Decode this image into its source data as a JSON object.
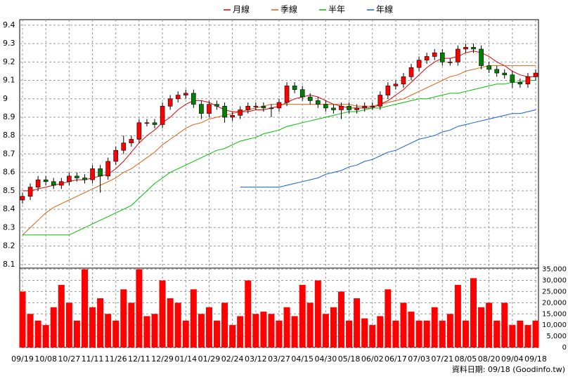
{
  "chart_data": {
    "type": "candlestick",
    "categories": [
      "09/19",
      null,
      null,
      "10/08",
      null,
      null,
      "10/27",
      null,
      null,
      "11/11",
      null,
      null,
      "11/26",
      null,
      null,
      "12/11",
      null,
      null,
      "12/29",
      null,
      null,
      "01/14",
      null,
      null,
      "01/29",
      null,
      null,
      "02/24",
      null,
      null,
      "03/12",
      null,
      null,
      "03/27",
      null,
      null,
      "04/15",
      null,
      null,
      "04/30",
      null,
      null,
      "05/18",
      null,
      null,
      "06/02",
      null,
      null,
      "06/17",
      null,
      null,
      "07/03",
      null,
      null,
      "07/21",
      null,
      null,
      "08/05",
      null,
      null,
      "08/20",
      null,
      null,
      "09/04",
      null,
      null,
      "09/18"
    ],
    "open": [
      8.45,
      8.47,
      8.52,
      8.56,
      8.55,
      8.53,
      8.55,
      8.58,
      8.57,
      8.56,
      8.62,
      8.58,
      8.66,
      8.72,
      8.76,
      8.78,
      8.87,
      8.87,
      8.86,
      8.96,
      9.0,
      9.02,
      9.03,
      8.97,
      8.92,
      8.97,
      8.96,
      8.9,
      8.91,
      8.94,
      8.96,
      8.96,
      8.95,
      8.95,
      8.98,
      9.07,
      9.05,
      9.01,
      8.99,
      8.97,
      8.95,
      8.94,
      8.96,
      8.94,
      8.95,
      8.96,
      8.96,
      9.02,
      9.07,
      9.08,
      9.12,
      9.17,
      9.21,
      9.23,
      9.25,
      9.2,
      9.2,
      9.27,
      9.28,
      9.27,
      9.18,
      9.16,
      9.14,
      9.13,
      9.09,
      9.08,
      9.12
    ],
    "high": [
      8.49,
      8.54,
      8.58,
      8.58,
      8.57,
      8.57,
      8.6,
      8.6,
      8.59,
      8.64,
      8.64,
      8.68,
      8.74,
      8.8,
      8.8,
      8.89,
      8.89,
      8.89,
      8.98,
      9.02,
      9.04,
      9.05,
      9.05,
      8.99,
      8.99,
      8.99,
      8.98,
      8.93,
      8.96,
      8.98,
      8.98,
      8.98,
      8.97,
      9.0,
      9.09,
      9.09,
      9.07,
      9.03,
      9.01,
      8.99,
      8.97,
      8.98,
      8.98,
      8.97,
      8.98,
      8.98,
      9.04,
      9.09,
      9.1,
      9.14,
      9.19,
      9.23,
      9.25,
      9.27,
      9.27,
      9.22,
      9.29,
      9.3,
      9.3,
      9.29,
      9.2,
      9.18,
      9.16,
      9.15,
      9.11,
      9.14,
      9.16
    ],
    "low": [
      8.43,
      8.45,
      8.5,
      8.53,
      8.51,
      8.51,
      8.53,
      8.55,
      8.54,
      8.54,
      8.49,
      8.56,
      8.64,
      8.7,
      8.74,
      8.76,
      8.85,
      8.84,
      8.84,
      8.94,
      8.98,
      9.0,
      8.95,
      8.89,
      8.9,
      8.94,
      8.87,
      8.88,
      8.89,
      8.92,
      8.94,
      8.93,
      8.9,
      8.93,
      8.96,
      9.03,
      8.99,
      8.97,
      8.95,
      8.93,
      8.92,
      8.89,
      8.92,
      8.92,
      8.93,
      8.94,
      8.94,
      9.0,
      9.05,
      9.06,
      9.1,
      9.15,
      9.19,
      9.21,
      9.18,
      9.18,
      9.18,
      9.25,
      9.25,
      9.16,
      9.14,
      9.12,
      9.11,
      9.06,
      9.06,
      9.06,
      9.1
    ],
    "close": [
      8.47,
      8.52,
      8.56,
      8.55,
      8.53,
      8.55,
      8.58,
      8.57,
      8.56,
      8.62,
      8.58,
      8.66,
      8.72,
      8.76,
      8.78,
      8.87,
      8.87,
      8.86,
      8.96,
      9.0,
      9.02,
      9.03,
      8.97,
      8.92,
      8.97,
      8.96,
      8.9,
      8.91,
      8.94,
      8.96,
      8.96,
      8.95,
      8.95,
      8.98,
      9.07,
      9.05,
      9.01,
      8.99,
      8.97,
      8.95,
      8.94,
      8.96,
      8.94,
      8.95,
      8.96,
      8.96,
      9.02,
      9.07,
      9.08,
      9.12,
      9.17,
      9.21,
      9.23,
      9.25,
      9.2,
      9.2,
      9.27,
      9.28,
      9.27,
      9.18,
      9.16,
      9.14,
      9.13,
      9.09,
      9.08,
      9.12,
      9.14
    ],
    "up_color": "#ff0000",
    "down_color": "#008000",
    "series": [
      {
        "name": "月線",
        "color": "#e00000",
        "values": [
          8.5,
          8.5,
          8.51,
          8.52,
          8.53,
          8.54,
          8.55,
          8.56,
          8.56,
          8.57,
          8.58,
          8.59,
          8.62,
          8.66,
          8.71,
          8.76,
          8.8,
          8.83,
          8.87,
          8.9,
          8.94,
          8.97,
          8.99,
          8.99,
          8.98,
          8.96,
          8.94,
          8.93,
          8.93,
          8.93,
          8.94,
          8.94,
          8.95,
          8.96,
          8.98,
          9.0,
          9.01,
          9.02,
          9.01,
          8.99,
          8.97,
          8.96,
          8.95,
          8.95,
          8.95,
          8.95,
          8.97,
          8.99,
          9.02,
          9.05,
          9.09,
          9.13,
          9.17,
          9.2,
          9.22,
          9.22,
          9.23,
          9.25,
          9.26,
          9.25,
          9.23,
          9.2,
          9.18,
          9.15,
          9.13,
          9.12,
          9.12
        ]
      },
      {
        "name": "季線",
        "color": "#e06010",
        "values": [
          8.26,
          8.3,
          8.34,
          8.38,
          8.41,
          8.43,
          8.45,
          8.47,
          8.49,
          8.51,
          8.53,
          8.55,
          8.57,
          8.6,
          8.62,
          8.65,
          8.68,
          8.71,
          8.75,
          8.78,
          8.81,
          8.84,
          8.86,
          8.87,
          8.89,
          8.9,
          8.91,
          8.92,
          8.93,
          8.94,
          8.95,
          8.96,
          8.97,
          8.97,
          8.97,
          8.97,
          8.97,
          8.97,
          8.97,
          8.97,
          8.97,
          8.97,
          8.97,
          8.96,
          8.96,
          8.96,
          8.97,
          8.98,
          8.99,
          9.0,
          9.02,
          9.04,
          9.06,
          9.08,
          9.1,
          9.12,
          9.13,
          9.15,
          9.16,
          9.17,
          9.18,
          9.18,
          9.18,
          9.18,
          9.18,
          9.18,
          9.18
        ]
      },
      {
        "name": "半年",
        "color": "#00c000",
        "values": [
          8.26,
          8.26,
          8.26,
          8.26,
          8.26,
          8.26,
          8.26,
          8.28,
          8.3,
          8.32,
          8.34,
          8.36,
          8.38,
          8.4,
          8.42,
          8.46,
          8.5,
          8.54,
          8.57,
          8.6,
          8.62,
          8.64,
          8.66,
          8.68,
          8.7,
          8.72,
          8.73,
          8.75,
          8.77,
          8.78,
          8.79,
          8.81,
          8.82,
          8.83,
          8.85,
          8.86,
          8.87,
          8.88,
          8.89,
          8.9,
          8.91,
          8.92,
          8.93,
          8.93,
          8.94,
          8.95,
          8.95,
          8.96,
          8.97,
          8.98,
          8.99,
          9.0,
          9.0,
          9.01,
          9.02,
          9.03,
          9.03,
          9.04,
          9.05,
          9.06,
          9.07,
          9.08,
          9.08,
          9.09,
          9.09,
          9.1,
          9.1
        ]
      },
      {
        "name": "年線",
        "color": "#1060d0",
        "values": [
          null,
          null,
          null,
          null,
          null,
          null,
          null,
          null,
          null,
          null,
          null,
          null,
          null,
          null,
          null,
          null,
          null,
          null,
          null,
          null,
          null,
          null,
          null,
          null,
          null,
          null,
          null,
          null,
          8.52,
          8.52,
          8.52,
          8.52,
          8.52,
          8.52,
          8.53,
          8.54,
          8.55,
          8.56,
          8.57,
          8.59,
          8.6,
          8.61,
          8.63,
          8.64,
          8.66,
          8.67,
          8.69,
          8.71,
          8.72,
          8.74,
          8.76,
          8.78,
          8.79,
          8.8,
          8.82,
          8.83,
          8.85,
          8.86,
          8.87,
          8.88,
          8.89,
          8.9,
          8.91,
          8.92,
          8.92,
          8.93,
          8.94
        ]
      }
    ],
    "ylim": [
      8.08,
      9.43
    ],
    "yticks": [
      8.1,
      8.2,
      8.3,
      8.4,
      8.5,
      8.6,
      8.7,
      8.8,
      8.9,
      9,
      9.1,
      9.2,
      9.3,
      9.4
    ],
    "grid": true,
    "volume": {
      "color": "#ff0000",
      "values": [
        25000,
        15000,
        12000,
        10000,
        18000,
        28000,
        20000,
        12000,
        35000,
        18000,
        22000,
        15000,
        12000,
        26000,
        20000,
        35000,
        14000,
        15000,
        30000,
        22000,
        20000,
        12000,
        26000,
        15000,
        18000,
        12000,
        20000,
        10000,
        14000,
        30000,
        15000,
        16000,
        15000,
        12000,
        18000,
        14000,
        28000,
        20000,
        30000,
        15000,
        18000,
        25000,
        12000,
        22000,
        13000,
        10000,
        14000,
        26000,
        12000,
        20000,
        16000,
        12000,
        12000,
        18000,
        12000,
        15000,
        28000,
        12000,
        31000,
        18000,
        20000,
        12000,
        20000,
        10000,
        12000,
        10000,
        12000
      ],
      "ylim": [
        0,
        35500
      ],
      "yticks": [
        0,
        {
          "value": 5000,
          "label": "5,000"
        },
        {
          "value": 10000,
          "label": "10,000"
        },
        {
          "value": 15000,
          "label": "15,000"
        },
        {
          "value": 20000,
          "label": "20,000"
        },
        {
          "value": 25000,
          "label": "25,000"
        },
        {
          "value": 30000,
          "label": "30,000"
        },
        {
          "value": 35000,
          "label": "35,000"
        }
      ]
    },
    "footer": "資料日期: 09/18  (Goodinfo.tw)"
  }
}
